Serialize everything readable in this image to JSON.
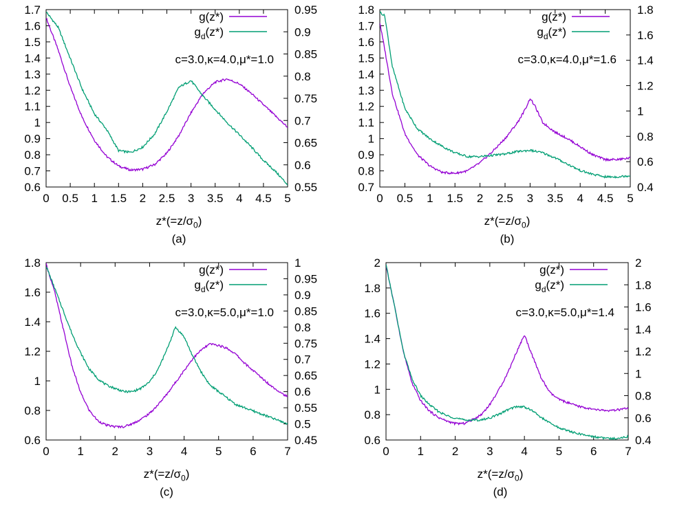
{
  "chart_data": [
    {
      "type": "line",
      "panel_label": "(a)",
      "xlabel_main": "z*(=z/σ",
      "xlabel_sub": "0",
      "xlabel_end": ")",
      "annotation": "c=3.0,κ=4.0,μ*=1.0",
      "xlim": [
        0,
        5
      ],
      "ylim_left": [
        0.6,
        1.7
      ],
      "ylim_right": [
        0.55,
        0.95
      ],
      "xticks": [
        "0",
        "0.5",
        "1",
        "1.5",
        "2",
        "2.5",
        "3",
        "3.5",
        "4",
        "4.5",
        "5"
      ],
      "yticks_left": [
        "0.6",
        "0.7",
        "0.8",
        "0.9",
        "1",
        "1.1",
        "1.2",
        "1.3",
        "1.4",
        "1.5",
        "1.6",
        "1.7"
      ],
      "yticks_right": [
        "0.55",
        "0.6",
        "0.65",
        "0.7",
        "0.75",
        "0.8",
        "0.85",
        "0.9",
        "0.95"
      ],
      "series": [
        {
          "name": "g(z*)",
          "axis": "left",
          "color": "#9400d3",
          "x": [
            0,
            0.25,
            0.5,
            0.75,
            1,
            1.25,
            1.5,
            1.75,
            2,
            2.25,
            2.5,
            2.75,
            3,
            3.25,
            3.5,
            3.75,
            4,
            4.25,
            4.5,
            4.75,
            5
          ],
          "y": [
            1.65,
            1.45,
            1.22,
            1.03,
            0.89,
            0.79,
            0.73,
            0.705,
            0.71,
            0.74,
            0.81,
            0.92,
            1.06,
            1.18,
            1.25,
            1.27,
            1.24,
            1.18,
            1.11,
            1.04,
            0.97
          ]
        },
        {
          "name": "g_d(z*)",
          "axis": "right",
          "color": "#009e73",
          "x": [
            0,
            0.25,
            0.5,
            0.75,
            1,
            1.25,
            1.5,
            1.75,
            2,
            2.25,
            2.5,
            2.75,
            3,
            3.25,
            3.5,
            3.75,
            4,
            4.25,
            4.5,
            4.75,
            5
          ],
          "y": [
            0.945,
            0.91,
            0.84,
            0.77,
            0.715,
            0.68,
            0.632,
            0.628,
            0.64,
            0.67,
            0.72,
            0.775,
            0.79,
            0.755,
            0.725,
            0.695,
            0.668,
            0.64,
            0.61,
            0.585,
            0.555
          ]
        }
      ]
    },
    {
      "type": "line",
      "panel_label": "(b)",
      "xlabel_main": "z*(=z/σ",
      "xlabel_sub": "0",
      "xlabel_end": ")",
      "annotation": "c=3.0,κ=4.0,μ*=1.6",
      "xlim": [
        0,
        5
      ],
      "ylim_left": [
        0.7,
        1.8
      ],
      "ylim_right": [
        0.4,
        1.8
      ],
      "xticks": [
        "0",
        "0.5",
        "1",
        "1.5",
        "2",
        "2.5",
        "3",
        "3.5",
        "4",
        "4.5",
        "5"
      ],
      "yticks_left": [
        "0.7",
        "0.8",
        "0.9",
        "1",
        "1.1",
        "1.2",
        "1.3",
        "1.4",
        "1.5",
        "1.6",
        "1.7",
        "1.8"
      ],
      "yticks_right": [
        "0.4",
        "0.6",
        "0.8",
        "1",
        "1.2",
        "1.4",
        "1.6",
        "1.8"
      ],
      "series": [
        {
          "name": "g(z*)",
          "axis": "left",
          "color": "#9400d3",
          "x": [
            0,
            0.1,
            0.25,
            0.5,
            0.75,
            1,
            1.25,
            1.5,
            1.75,
            2,
            2.25,
            2.5,
            2.75,
            2.9,
            3,
            3.1,
            3.25,
            3.5,
            3.75,
            4,
            4.25,
            4.5,
            4.75,
            5
          ],
          "y": [
            1.72,
            1.55,
            1.28,
            1.03,
            0.9,
            0.83,
            0.79,
            0.785,
            0.8,
            0.85,
            0.92,
            1.0,
            1.1,
            1.18,
            1.25,
            1.2,
            1.1,
            1.04,
            1.0,
            0.95,
            0.9,
            0.87,
            0.87,
            0.88
          ]
        },
        {
          "name": "g_d(z*)",
          "axis": "right",
          "color": "#009e73",
          "x": [
            0,
            0.1,
            0.25,
            0.5,
            0.75,
            1,
            1.25,
            1.5,
            1.75,
            2,
            2.25,
            2.5,
            2.75,
            3,
            3.25,
            3.5,
            3.75,
            4,
            4.25,
            4.5,
            4.75,
            5
          ],
          "y": [
            1.78,
            1.75,
            1.35,
            1.02,
            0.86,
            0.78,
            0.72,
            0.67,
            0.64,
            0.64,
            0.65,
            0.66,
            0.68,
            0.69,
            0.67,
            0.63,
            0.58,
            0.53,
            0.5,
            0.48,
            0.48,
            0.49
          ]
        }
      ]
    },
    {
      "type": "line",
      "panel_label": "(c)",
      "xlabel_main": "z*(=z/σ",
      "xlabel_sub": "0",
      "xlabel_end": ")",
      "annotation": "c=3.0,κ=5.0,μ*=1.0",
      "xlim": [
        0,
        7
      ],
      "ylim_left": [
        0.6,
        1.8
      ],
      "ylim_right": [
        0.45,
        1.0
      ],
      "xticks": [
        "0",
        "1",
        "2",
        "3",
        "4",
        "5",
        "6",
        "7"
      ],
      "yticks_left": [
        "0.6",
        "0.8",
        "1",
        "1.2",
        "1.4",
        "1.6",
        "1.8"
      ],
      "yticks_right": [
        "0.45",
        "0.5",
        "0.55",
        "0.6",
        "0.65",
        "0.7",
        "0.75",
        "0.8",
        "0.85",
        "0.9",
        "0.95",
        "1"
      ],
      "series": [
        {
          "name": "g(z*)",
          "axis": "left",
          "color": "#9400d3",
          "x": [
            0,
            0.25,
            0.5,
            0.75,
            1,
            1.25,
            1.5,
            1.75,
            2,
            2.25,
            2.5,
            2.75,
            3,
            3.25,
            3.5,
            3.75,
            4,
            4.25,
            4.5,
            4.75,
            5,
            5.25,
            5.5,
            5.75,
            6,
            6.25,
            6.5,
            6.75,
            7
          ],
          "y": [
            1.79,
            1.6,
            1.35,
            1.1,
            0.92,
            0.8,
            0.73,
            0.7,
            0.69,
            0.69,
            0.71,
            0.74,
            0.78,
            0.84,
            0.91,
            0.99,
            1.07,
            1.15,
            1.21,
            1.25,
            1.24,
            1.22,
            1.18,
            1.12,
            1.07,
            1.02,
            0.97,
            0.93,
            0.89
          ]
        },
        {
          "name": "g_d(z*)",
          "axis": "right",
          "color": "#009e73",
          "x": [
            0,
            0.25,
            0.5,
            0.75,
            1,
            1.25,
            1.5,
            1.75,
            2,
            2.25,
            2.5,
            2.75,
            3,
            3.25,
            3.5,
            3.75,
            4,
            4.25,
            4.5,
            4.75,
            5,
            5.25,
            5.5,
            5.75,
            6,
            6.25,
            6.5,
            6.75,
            7
          ],
          "y": [
            0.99,
            0.92,
            0.85,
            0.78,
            0.72,
            0.67,
            0.64,
            0.62,
            0.61,
            0.6,
            0.6,
            0.61,
            0.63,
            0.67,
            0.73,
            0.8,
            0.77,
            0.71,
            0.66,
            0.62,
            0.6,
            0.58,
            0.56,
            0.55,
            0.54,
            0.53,
            0.52,
            0.51,
            0.5
          ]
        }
      ]
    },
    {
      "type": "line",
      "panel_label": "(d)",
      "xlabel_main": "z*(=z/σ",
      "xlabel_sub": "0",
      "xlabel_end": ")",
      "annotation": "c=3.0,κ=5.0,μ*=1.4",
      "xlim": [
        0,
        7
      ],
      "ylim_left": [
        0.6,
        2.0
      ],
      "ylim_right": [
        0.4,
        2.0
      ],
      "xticks": [
        "0",
        "1",
        "2",
        "3",
        "4",
        "5",
        "6",
        "7"
      ],
      "yticks_left": [
        "0.6",
        "0.8",
        "1",
        "1.2",
        "1.4",
        "1.6",
        "1.8",
        "2"
      ],
      "yticks_right": [
        "0.4",
        "0.6",
        "0.8",
        "1",
        "1.2",
        "1.4",
        "1.6",
        "1.8",
        "2"
      ],
      "series": [
        {
          "name": "g(z*)",
          "axis": "left",
          "color": "#9400d3",
          "x": [
            0,
            0.25,
            0.5,
            0.75,
            1,
            1.25,
            1.5,
            1.75,
            2,
            2.25,
            2.5,
            2.75,
            3,
            3.25,
            3.5,
            3.75,
            4,
            4.25,
            4.5,
            4.75,
            5,
            5.5,
            6,
            6.5,
            7
          ],
          "y": [
            1.98,
            1.65,
            1.3,
            1.05,
            0.91,
            0.83,
            0.78,
            0.75,
            0.73,
            0.73,
            0.76,
            0.8,
            0.88,
            0.99,
            1.12,
            1.28,
            1.43,
            1.25,
            1.08,
            0.97,
            0.92,
            0.87,
            0.84,
            0.83,
            0.85
          ]
        },
        {
          "name": "g_d(z*)",
          "axis": "right",
          "color": "#009e73",
          "x": [
            0,
            0.25,
            0.5,
            0.75,
            1,
            1.25,
            1.5,
            1.75,
            2,
            2.25,
            2.5,
            2.75,
            3,
            3.25,
            3.5,
            3.75,
            4,
            4.25,
            4.5,
            4.75,
            5,
            5.5,
            6,
            6.5,
            7
          ],
          "y": [
            1.98,
            1.6,
            1.2,
            0.95,
            0.8,
            0.72,
            0.66,
            0.62,
            0.6,
            0.58,
            0.58,
            0.58,
            0.6,
            0.63,
            0.67,
            0.7,
            0.7,
            0.66,
            0.6,
            0.55,
            0.51,
            0.46,
            0.43,
            0.41,
            0.43
          ]
        }
      ]
    }
  ],
  "legend": {
    "g_label": "g(z*)",
    "gd_label_main": "g",
    "gd_label_sub": "d",
    "gd_label_end": "(z*)"
  }
}
